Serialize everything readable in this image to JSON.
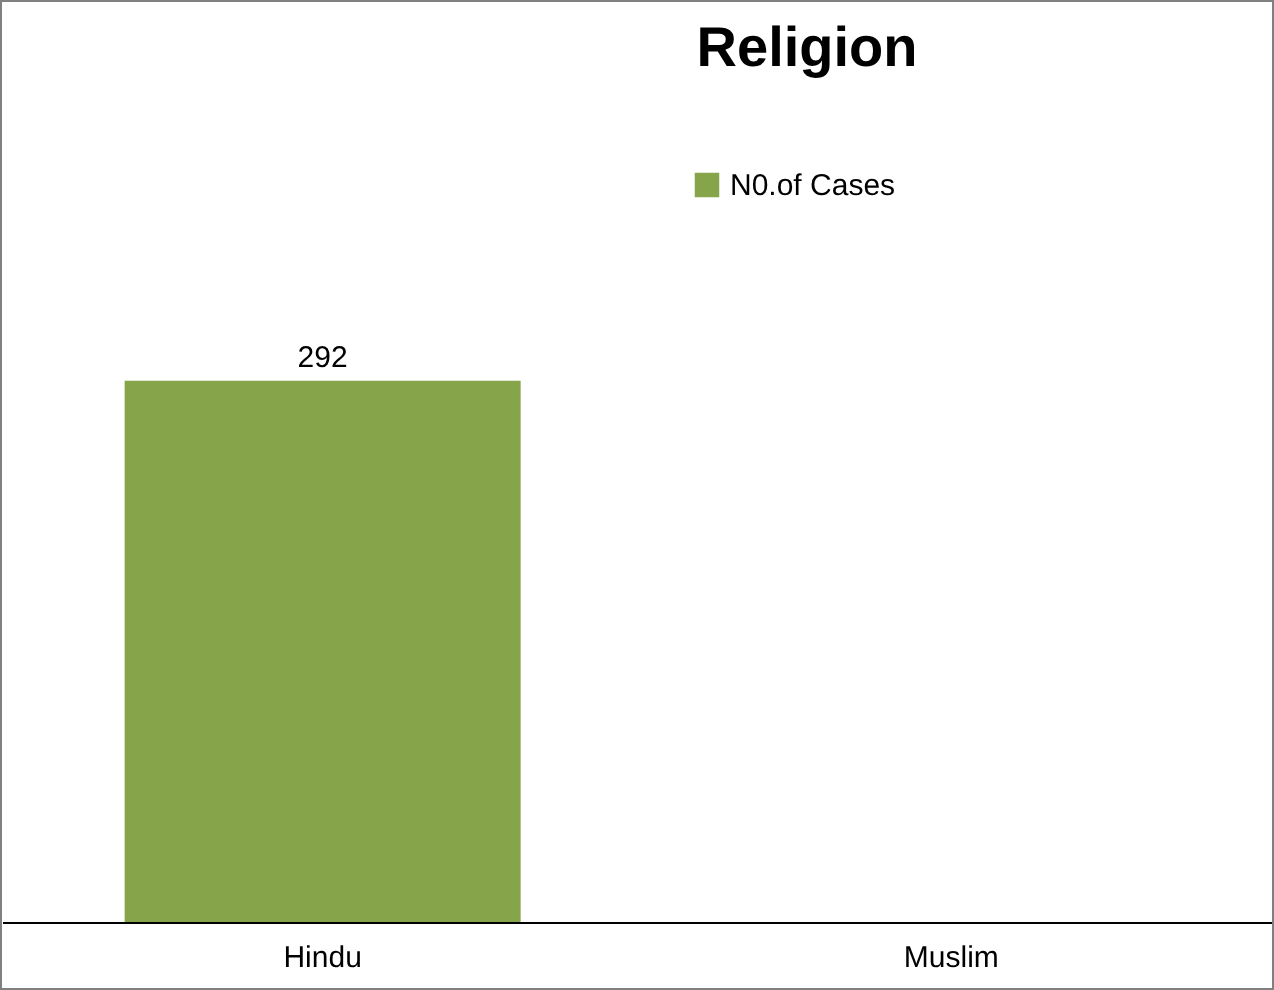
{
  "chart_data": {
    "type": "bar",
    "title": "Religion",
    "categories": [
      "Hindu",
      "Muslim"
    ],
    "series": [
      {
        "name": "N0.of Cases",
        "color": "#86a44a",
        "values": [
          292,
          null
        ]
      }
    ],
    "data_labels": true,
    "tick_labels": "x",
    "legend": "top"
  }
}
